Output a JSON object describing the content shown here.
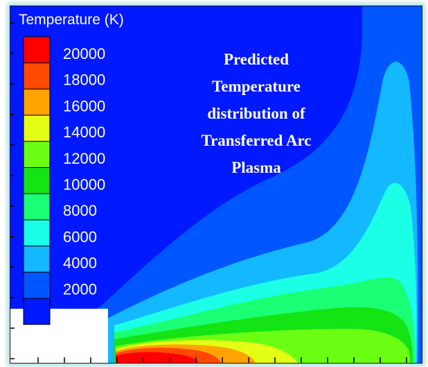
{
  "chart_data": {
    "type": "heatmap",
    "title": "",
    "legend": {
      "title": "Temperature (K)",
      "placement": "top-left",
      "levels": [
        20000,
        18000,
        16000,
        14000,
        12000,
        10000,
        8000,
        6000,
        4000,
        2000
      ],
      "colors": [
        "#ff0000",
        "#ff4a00",
        "#ffa300",
        "#e3ff14",
        "#6bff14",
        "#14e314",
        "#1aff73",
        "#1affe6",
        "#14b8ff",
        "#0057ff",
        "#0019ff"
      ]
    },
    "annotation": [
      "Predicted",
      "Temperature",
      "distribution of",
      "Transferred Arc",
      "Plasma"
    ],
    "grid": false
  }
}
